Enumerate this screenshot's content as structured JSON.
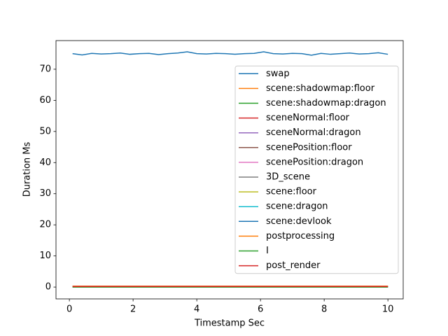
{
  "chart_data": {
    "type": "line",
    "xlabel": "Timestamp Sec",
    "ylabel": "Duration Ms",
    "x": [
      0.1,
      0.4,
      0.7,
      1.0,
      1.3,
      1.6,
      1.9,
      2.2,
      2.5,
      2.8,
      3.1,
      3.4,
      3.7,
      4.0,
      4.3,
      4.6,
      4.9,
      5.2,
      5.5,
      5.8,
      6.1,
      6.4,
      6.7,
      7.0,
      7.3,
      7.6,
      7.9,
      8.2,
      8.5,
      8.8,
      9.1,
      9.4,
      9.7,
      10.0
    ],
    "series": [
      {
        "name": "swap",
        "color": "#1f77b4",
        "values": [
          75.0,
          74.6,
          75.1,
          74.9,
          75.0,
          75.2,
          74.8,
          75.0,
          75.1,
          74.7,
          75.0,
          75.2,
          75.6,
          75.0,
          74.9,
          75.1,
          75.0,
          74.8,
          75.0,
          75.1,
          75.6,
          75.0,
          74.9,
          75.1,
          75.0,
          74.5,
          75.1,
          74.8,
          75.0,
          75.2,
          74.9,
          75.0,
          75.3,
          74.8
        ]
      },
      {
        "name": "scene:shadowmap:floor",
        "color": "#ff7f0e",
        "values": [
          0.1,
          0.1,
          0.1,
          0.1,
          0.1,
          0.1,
          0.1,
          0.1,
          0.1,
          0.1,
          0.1,
          0.1,
          0.1,
          0.1,
          0.1,
          0.1,
          0.1,
          0.1,
          0.1,
          0.1,
          0.1,
          0.1,
          0.1,
          0.1,
          0.1,
          0.1,
          0.1,
          0.1,
          0.1,
          0.1,
          0.1,
          0.1,
          0.1,
          0.1
        ]
      },
      {
        "name": "scene:shadowmap:dragon",
        "color": "#2ca02c",
        "values": [
          0.2,
          0.2,
          0.2,
          0.2,
          0.2,
          0.2,
          0.2,
          0.2,
          0.2,
          0.2,
          0.2,
          0.2,
          0.2,
          0.2,
          0.2,
          0.2,
          0.2,
          0.2,
          0.2,
          0.2,
          0.2,
          0.2,
          0.2,
          0.2,
          0.2,
          0.2,
          0.2,
          0.2,
          0.2,
          0.2,
          0.2,
          0.2,
          0.2,
          0.2
        ]
      },
      {
        "name": "sceneNormal:floor",
        "color": "#d62728",
        "values": [
          0.05,
          0.05,
          0.05,
          0.05,
          0.05,
          0.05,
          0.05,
          0.05,
          0.05,
          0.05,
          0.05,
          0.05,
          0.05,
          0.05,
          0.05,
          0.05,
          0.05,
          0.05,
          0.05,
          0.05,
          0.05,
          0.05,
          0.05,
          0.05,
          0.05,
          0.05,
          0.05,
          0.05,
          0.05,
          0.05,
          0.05,
          0.05,
          0.05,
          0.05
        ]
      },
      {
        "name": "sceneNormal:dragon",
        "color": "#9467bd",
        "values": [
          0.1,
          0.1,
          0.1,
          0.1,
          0.1,
          0.1,
          0.1,
          0.1,
          0.1,
          0.1,
          0.1,
          0.1,
          0.1,
          0.1,
          0.1,
          0.1,
          0.1,
          0.1,
          0.1,
          0.1,
          0.1,
          0.1,
          0.1,
          0.1,
          0.1,
          0.1,
          0.1,
          0.1,
          0.1,
          0.1,
          0.1,
          0.1,
          0.1,
          0.1
        ]
      },
      {
        "name": "scenePosition:floor",
        "color": "#8c564b",
        "values": [
          0.05,
          0.05,
          0.05,
          0.05,
          0.05,
          0.05,
          0.05,
          0.05,
          0.05,
          0.05,
          0.05,
          0.05,
          0.05,
          0.05,
          0.05,
          0.05,
          0.05,
          0.05,
          0.05,
          0.05,
          0.05,
          0.05,
          0.05,
          0.05,
          0.05,
          0.05,
          0.05,
          0.05,
          0.05,
          0.05,
          0.05,
          0.05,
          0.05,
          0.05
        ]
      },
      {
        "name": "scenePosition:dragon",
        "color": "#e377c2",
        "values": [
          0.1,
          0.1,
          0.1,
          0.1,
          0.1,
          0.1,
          0.1,
          0.1,
          0.1,
          0.1,
          0.1,
          0.1,
          0.1,
          0.1,
          0.1,
          0.1,
          0.1,
          0.1,
          0.1,
          0.1,
          0.1,
          0.1,
          0.1,
          0.1,
          0.1,
          0.1,
          0.1,
          0.1,
          0.1,
          0.1,
          0.1,
          0.1,
          0.1,
          0.1
        ]
      },
      {
        "name": "3D_scene",
        "color": "#7f7f7f",
        "values": [
          0.3,
          0.3,
          0.3,
          0.3,
          0.3,
          0.3,
          0.3,
          0.3,
          0.3,
          0.3,
          0.3,
          0.3,
          0.3,
          0.3,
          0.3,
          0.3,
          0.3,
          0.3,
          0.3,
          0.3,
          0.3,
          0.3,
          0.3,
          0.3,
          0.3,
          0.3,
          0.3,
          0.3,
          0.3,
          0.3,
          0.3,
          0.3,
          0.3,
          0.3
        ]
      },
      {
        "name": "scene:floor",
        "color": "#bcbd22",
        "values": [
          0.05,
          0.05,
          0.05,
          0.05,
          0.05,
          0.05,
          0.05,
          0.05,
          0.05,
          0.05,
          0.05,
          0.05,
          0.05,
          0.05,
          0.05,
          0.05,
          0.05,
          0.05,
          0.05,
          0.05,
          0.05,
          0.05,
          0.05,
          0.05,
          0.05,
          0.05,
          0.05,
          0.05,
          0.05,
          0.05,
          0.05,
          0.05,
          0.05,
          0.05
        ]
      },
      {
        "name": "scene:dragon",
        "color": "#17becf",
        "values": [
          0.1,
          0.1,
          0.1,
          0.1,
          0.1,
          0.1,
          0.1,
          0.1,
          0.1,
          0.1,
          0.1,
          0.1,
          0.1,
          0.1,
          0.1,
          0.1,
          0.1,
          0.1,
          0.1,
          0.1,
          0.1,
          0.1,
          0.1,
          0.1,
          0.1,
          0.1,
          0.1,
          0.1,
          0.1,
          0.1,
          0.1,
          0.1,
          0.1,
          0.1
        ]
      },
      {
        "name": "scene:devlook",
        "color": "#1f77b4",
        "values": [
          0.05,
          0.05,
          0.05,
          0.05,
          0.05,
          0.05,
          0.05,
          0.05,
          0.05,
          0.05,
          0.05,
          0.05,
          0.05,
          0.05,
          0.05,
          0.05,
          0.05,
          0.05,
          0.05,
          0.05,
          0.05,
          0.05,
          0.05,
          0.05,
          0.05,
          0.05,
          0.05,
          0.05,
          0.05,
          0.05,
          0.05,
          0.05,
          0.05,
          0.05
        ]
      },
      {
        "name": "postprocessing",
        "color": "#ff7f0e",
        "values": [
          0.3,
          0.3,
          0.3,
          0.3,
          0.3,
          0.3,
          0.3,
          0.3,
          0.3,
          0.3,
          0.3,
          0.3,
          0.3,
          0.3,
          0.3,
          0.3,
          0.3,
          0.3,
          0.3,
          0.3,
          0.3,
          0.3,
          0.3,
          0.3,
          0.3,
          0.3,
          0.3,
          0.3,
          0.3,
          0.3,
          0.3,
          0.3,
          0.3,
          0.3
        ]
      },
      {
        "name": "I",
        "color": "#2ca02c",
        "values": [
          0.02,
          0.02,
          0.02,
          0.02,
          0.02,
          0.02,
          0.02,
          0.02,
          0.02,
          0.02,
          0.02,
          0.02,
          0.02,
          0.02,
          0.02,
          0.02,
          0.02,
          0.02,
          0.02,
          0.02,
          0.02,
          0.02,
          0.02,
          0.02,
          0.02,
          0.02,
          0.02,
          0.02,
          0.02,
          0.02,
          0.02,
          0.02,
          0.02,
          0.02
        ]
      },
      {
        "name": "post_render",
        "color": "#d62728",
        "values": [
          0.2,
          0.2,
          0.2,
          0.2,
          0.2,
          0.2,
          0.2,
          0.2,
          0.2,
          0.2,
          0.2,
          0.2,
          0.2,
          0.2,
          0.2,
          0.2,
          0.2,
          0.2,
          0.2,
          0.2,
          0.2,
          0.2,
          0.2,
          0.2,
          0.2,
          0.2,
          0.2,
          0.2,
          0.2,
          0.2,
          0.2,
          0.2,
          0.2,
          0.2
        ]
      }
    ],
    "xlim": [
      -0.42,
      10.48
    ],
    "xticks": [
      0,
      2,
      4,
      6,
      8,
      10
    ],
    "ylim": [
      -3.8,
      79.2
    ],
    "yticks": [
      0,
      10,
      20,
      30,
      40,
      50,
      60,
      70
    ],
    "grid": false,
    "legend": "center right"
  }
}
